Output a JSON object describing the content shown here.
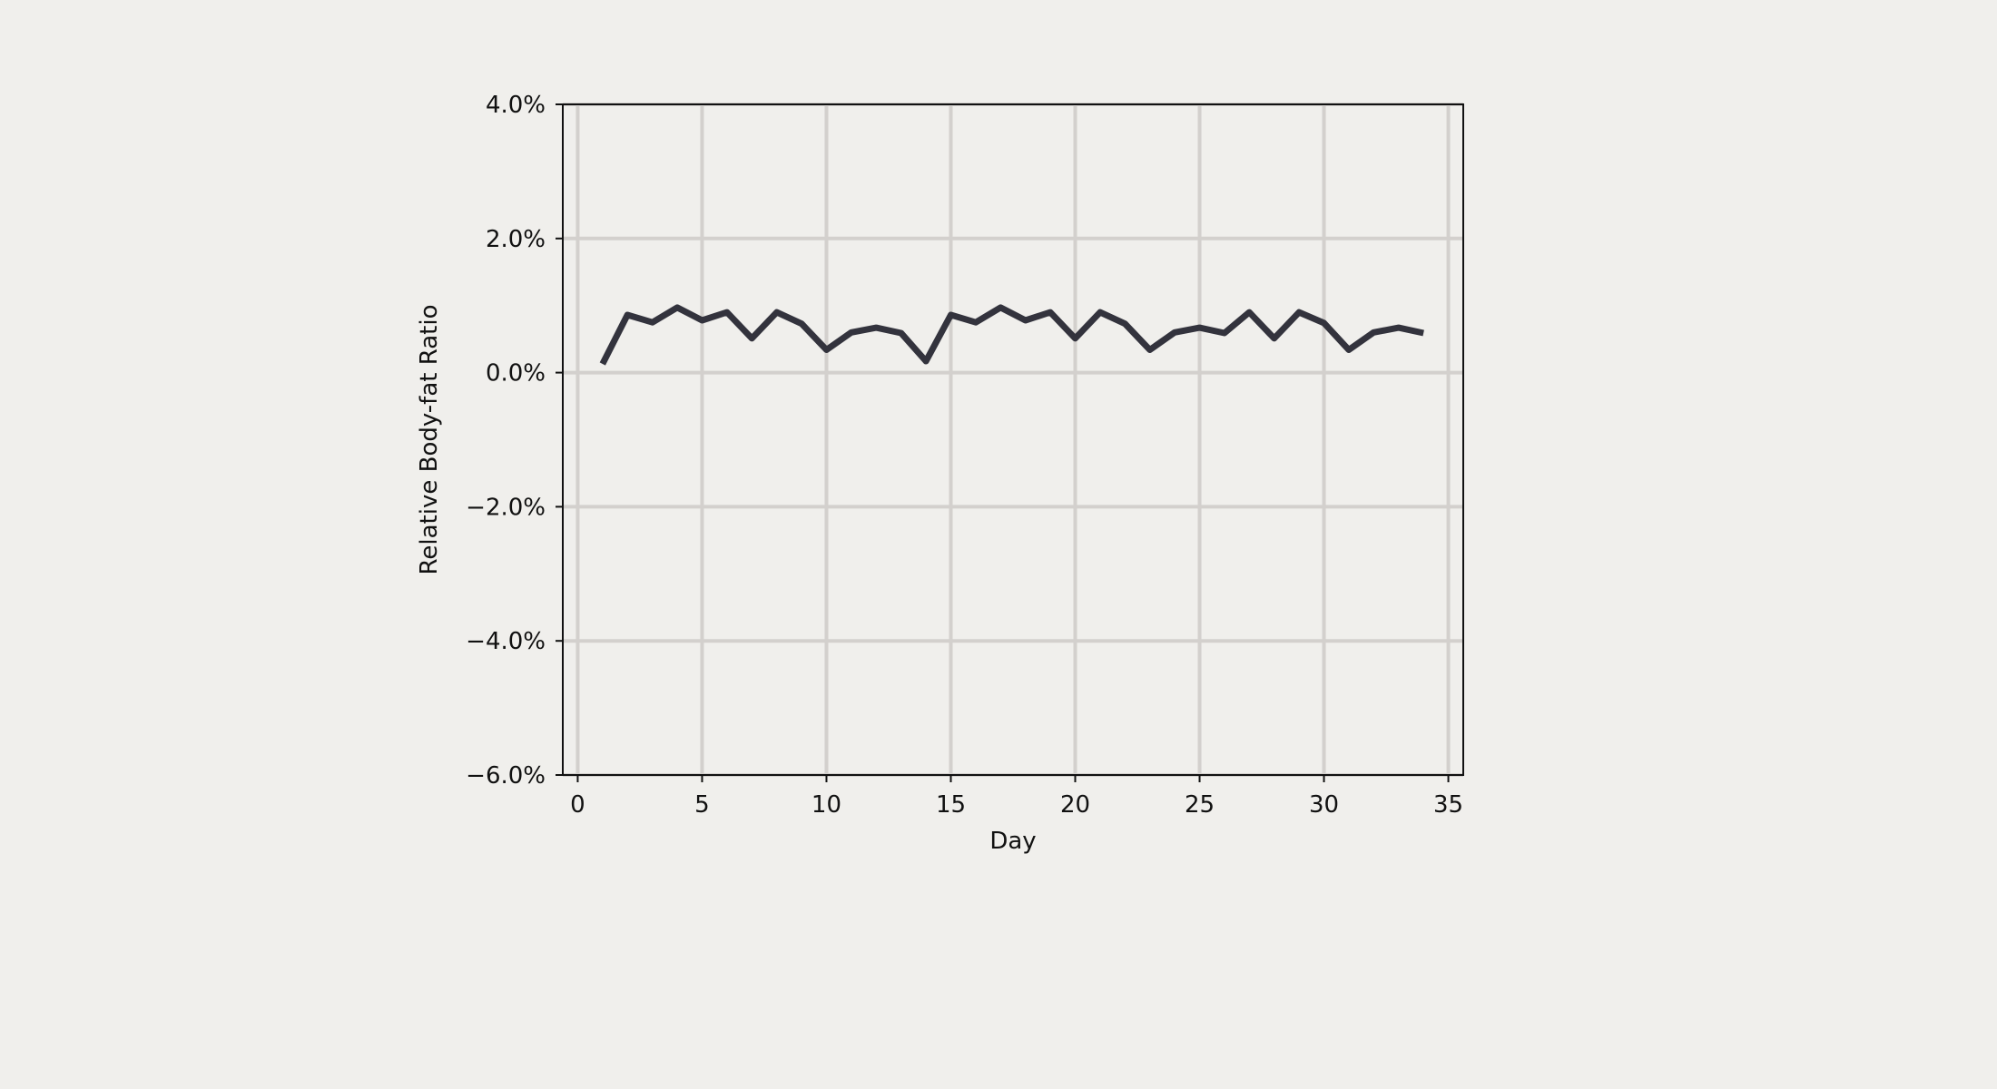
{
  "chart_data": {
    "type": "line",
    "title": "",
    "xlabel": "Day",
    "ylabel": "Relative Body-fat Ratio",
    "xlim": [
      -0.6,
      35.6
    ],
    "ylim": [
      -6.0,
      4.0
    ],
    "xticks": [
      0,
      5,
      10,
      15,
      20,
      25,
      30,
      35
    ],
    "xtick_labels": [
      "0",
      "5",
      "10",
      "15",
      "20",
      "25",
      "30",
      "35"
    ],
    "yticks": [
      4.0,
      2.0,
      0.0,
      -2.0,
      -4.0,
      -6.0
    ],
    "ytick_labels": [
      "4.0%",
      "2.0%",
      "0.0%",
      "−2.0%",
      "−4.0%",
      "−6.0%"
    ],
    "grid": true,
    "legend": false,
    "series": [
      {
        "color": "#33333d",
        "x": [
          1,
          2,
          3,
          4,
          5,
          6,
          7,
          8,
          9,
          10,
          11,
          12,
          13,
          14,
          15,
          16,
          17,
          18,
          19,
          20,
          21,
          22,
          23,
          24,
          25,
          26,
          27,
          28,
          29,
          30,
          31,
          32,
          33,
          34
        ],
        "y": [
          0.13,
          0.86,
          0.75,
          0.97,
          0.78,
          0.9,
          0.51,
          0.9,
          0.73,
          0.34,
          0.6,
          0.67,
          0.59,
          0.17,
          0.86,
          0.75,
          0.97,
          0.78,
          0.9,
          0.51,
          0.9,
          0.73,
          0.34,
          0.6,
          0.67,
          0.59,
          0.9,
          0.51,
          0.9,
          0.74,
          0.34,
          0.6,
          0.67,
          0.59
        ]
      }
    ]
  }
}
